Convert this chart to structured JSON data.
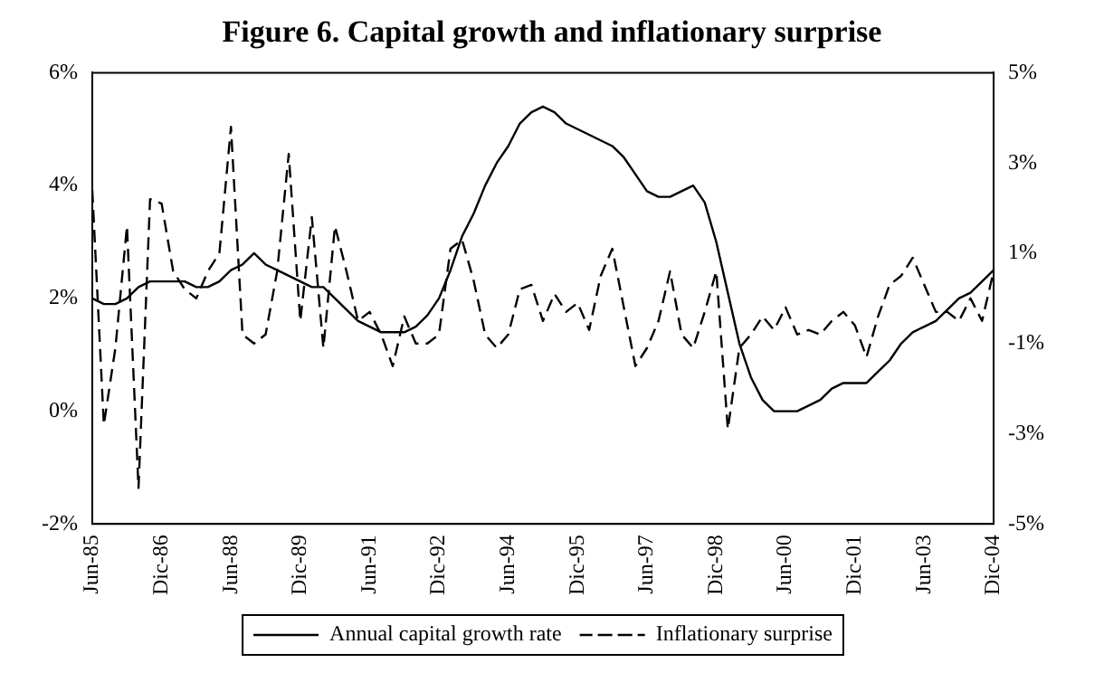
{
  "chart_data": {
    "type": "line",
    "title": "Figure 6. Capital growth and inflationary surprise",
    "categories": [
      "Jun-85",
      null,
      null,
      null,
      null,
      null,
      "Dic-86",
      null,
      null,
      null,
      null,
      null,
      "Jun-88",
      null,
      null,
      null,
      null,
      null,
      "Dic-89",
      null,
      null,
      null,
      null,
      null,
      "Jun-91",
      null,
      null,
      null,
      null,
      null,
      "Dic-92",
      null,
      null,
      null,
      null,
      null,
      "Jun-94",
      null,
      null,
      null,
      null,
      null,
      "Dic-95",
      null,
      null,
      null,
      null,
      null,
      "Jun-97",
      null,
      null,
      null,
      null,
      null,
      "Dic-98",
      null,
      null,
      null,
      null,
      null,
      "Jun-00",
      null,
      null,
      null,
      null,
      null,
      "Dic-01",
      null,
      null,
      null,
      null,
      null,
      "Jun-03",
      null,
      null,
      null,
      null,
      null,
      "Dic-04"
    ],
    "series": [
      {
        "name": "Annual capital growth rate",
        "color": "#000000",
        "line_style": "solid",
        "values": [
          2.0,
          1.9,
          1.9,
          2.0,
          2.2,
          2.3,
          2.3,
          2.3,
          2.3,
          2.2,
          2.2,
          2.3,
          2.5,
          2.6,
          2.8,
          2.6,
          2.5,
          2.4,
          2.3,
          2.2,
          2.2,
          2.0,
          1.8,
          1.6,
          1.5,
          1.4,
          1.4,
          1.4,
          1.5,
          1.7,
          2.0,
          2.5,
          3.1,
          3.5,
          4.0,
          4.4,
          4.7,
          5.1,
          5.3,
          5.4,
          5.3,
          5.1,
          5.0,
          4.9,
          4.8,
          4.7,
          4.5,
          4.2,
          3.9,
          3.8,
          3.8,
          3.9,
          4.0,
          3.7,
          3.0,
          2.1,
          1.2,
          0.6,
          0.2,
          0.0,
          0.0,
          0.0,
          0.1,
          0.2,
          0.4,
          0.5,
          0.5,
          0.5,
          0.7,
          0.9,
          1.2,
          1.4,
          1.5,
          1.6,
          1.8,
          2.0,
          2.1,
          2.3,
          2.5
        ]
      },
      {
        "name": "Inflationary surprise",
        "color": "#000000",
        "line_style": "dashed",
        "axis": "y2",
        "values": [
          2.4,
          -2.8,
          -1.1,
          1.6,
          -4.2,
          2.2,
          2.1,
          0.6,
          0.2,
          0.0,
          0.6,
          1.0,
          3.8,
          -0.8,
          -1.0,
          -0.8,
          0.6,
          3.2,
          -0.5,
          1.8,
          -1.1,
          1.6,
          0.6,
          -0.5,
          -0.3,
          -0.8,
          -1.5,
          -0.4,
          -1.0,
          -1.0,
          -0.8,
          1.1,
          1.3,
          0.4,
          -0.8,
          -1.1,
          -0.8,
          0.2,
          0.3,
          -0.5,
          0.1,
          -0.3,
          -0.1,
          -0.7,
          0.5,
          1.1,
          -0.2,
          -1.5,
          -1.1,
          -0.5,
          0.6,
          -0.8,
          -1.1,
          -0.3,
          0.6,
          -2.9,
          -1.1,
          -0.8,
          -0.4,
          -0.7,
          -0.2,
          -0.8,
          -0.7,
          -0.8,
          -0.5,
          -0.3,
          -0.6,
          -1.3,
          -0.4,
          0.3,
          0.5,
          0.9,
          0.3,
          -0.3,
          -0.3,
          -0.5,
          0.0,
          -0.5,
          0.6
        ]
      }
    ],
    "ylim": [
      -2,
      6
    ],
    "yticks": [
      {
        "value": -2,
        "label": "-2%"
      },
      {
        "value": 0,
        "label": "0%"
      },
      {
        "value": 2,
        "label": "2%"
      },
      {
        "value": 4,
        "label": "4%"
      },
      {
        "value": 6,
        "label": "6%"
      }
    ],
    "y2lim": [
      -5,
      5
    ],
    "y2ticks": [
      {
        "value": -5,
        "label": "-5%"
      },
      {
        "value": -3,
        "label": "-3%"
      },
      {
        "value": -1,
        "label": "-1%"
      },
      {
        "value": 1,
        "label": "1%"
      },
      {
        "value": 3,
        "label": "3%"
      },
      {
        "value": 5,
        "label": "5%"
      }
    ],
    "grid": false,
    "legend": "bottom",
    "marker": "none"
  }
}
